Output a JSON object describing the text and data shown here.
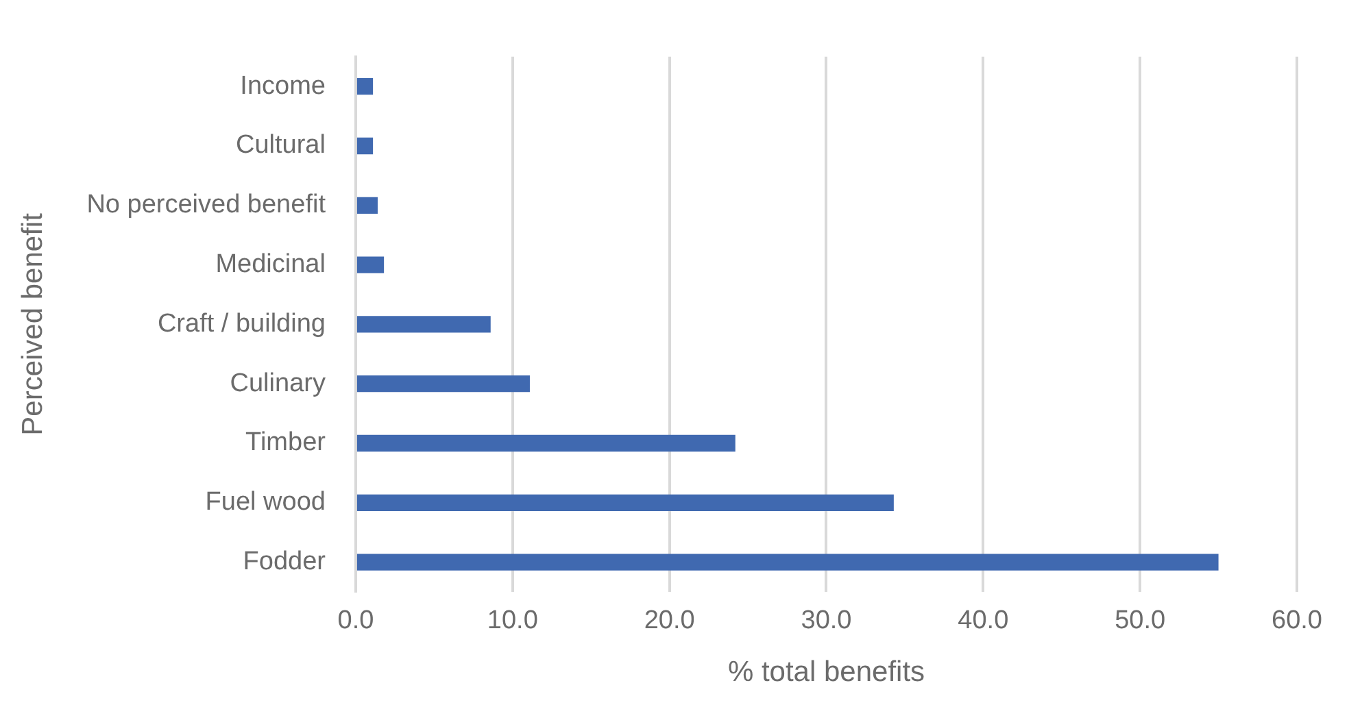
{
  "chart_data": {
    "type": "bar",
    "orientation": "horizontal",
    "xlabel": "% total benefits",
    "ylabel": "Perceived benefit",
    "categories": [
      "Income",
      "Cultural",
      "No perceived benefit",
      "Medicinal",
      "Craft / building",
      "Culinary",
      "Timber",
      "Fuel wood",
      "Fodder"
    ],
    "values": [
      1.1,
      1.1,
      1.4,
      1.8,
      8.6,
      11.1,
      24.2,
      34.3,
      55.0
    ],
    "color": "#4069b0",
    "xlim": [
      0,
      60
    ],
    "xticks": [
      {
        "value": 0,
        "label": "0.0"
      },
      {
        "value": 10,
        "label": "10.0"
      },
      {
        "value": 20,
        "label": "20.0"
      },
      {
        "value": 30,
        "label": "30.0"
      },
      {
        "value": 40,
        "label": "40.0"
      },
      {
        "value": 50,
        "label": "50.0"
      },
      {
        "value": 60,
        "label": "60.0"
      }
    ],
    "grid": "x",
    "legend": false
  }
}
